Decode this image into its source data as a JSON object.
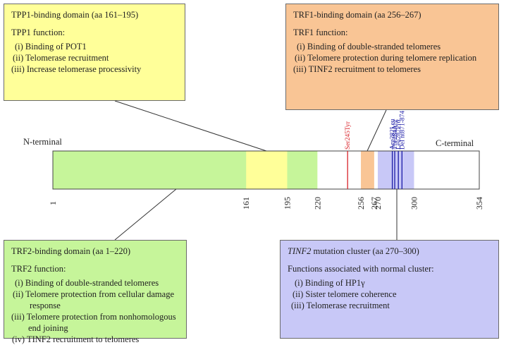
{
  "protein": {
    "n_label": "N-terminal",
    "c_label": "C-terminal",
    "start": 1,
    "end": 354,
    "ticks": [
      "1",
      "161",
      "195",
      "220",
      "256",
      "267",
      "270",
      "300",
      "354"
    ],
    "regions": [
      {
        "name": "TRF2-binding",
        "from": 1,
        "to": 220,
        "color": "#c6f59a"
      },
      {
        "name": "TPP1-binding",
        "from": 161,
        "to": 195,
        "color": "#ffff99"
      },
      {
        "name": "TRF1-binding",
        "from": 256,
        "to": 267,
        "color": "#f9c595"
      },
      {
        "name": "TINF2 mutation cluster",
        "from": 270,
        "to": 300,
        "color": "#c8c8f7"
      }
    ],
    "mutations": [
      {
        "label": "Ser245Tyr",
        "pos": 245,
        "color": "#d9232a"
      },
      {
        "label": "Arg282Leu",
        "pos": 282,
        "color": "#1a1aa6"
      },
      {
        "label": "Thr284Arg",
        "pos": 284,
        "color": "#1a1aa6"
      },
      {
        "label": "Leu287Pro",
        "pos": 287,
        "color": "#1a1aa6"
      },
      {
        "label": "Del nt871-874",
        "pos": 290,
        "color": "#1a1aa6"
      }
    ]
  },
  "tpp1": {
    "title": "TPP1-binding domain (aa 161–195)",
    "subtitle": "TPP1 function:",
    "items": [
      "(i) Binding of POT1",
      "(ii) Telomerase recruitment",
      "(iii) Increase telomerase processivity"
    ]
  },
  "trf1": {
    "title": "TRF1-binding domain (aa 256–267)",
    "subtitle": "TRF1 function:",
    "items": [
      "(i) Binding of double-stranded telomeres",
      "(ii) Telomere protection during telomere replication",
      "(iii) TINF2 recruitment to telomeres"
    ]
  },
  "trf2": {
    "title": "TRF2-binding domain (aa 1–220)",
    "subtitle": "TRF2 function:",
    "items": [
      "(i) Binding of double-stranded telomeres",
      "(ii) Telomere protection from cellular damage response",
      "(iii) Telomere protection from nonhomologous end joining",
      "(iv) TINF2 recruitment to telomeres"
    ]
  },
  "tinf2": {
    "title_italic": "TINF2",
    "title_rest": " mutation cluster (aa 270–300)",
    "subtitle": "Functions associated with normal cluster:",
    "items": [
      "(i) Binding of HP1γ",
      "(ii) Sister telomere coherence",
      "(iii) Telomerase recruitment"
    ]
  }
}
